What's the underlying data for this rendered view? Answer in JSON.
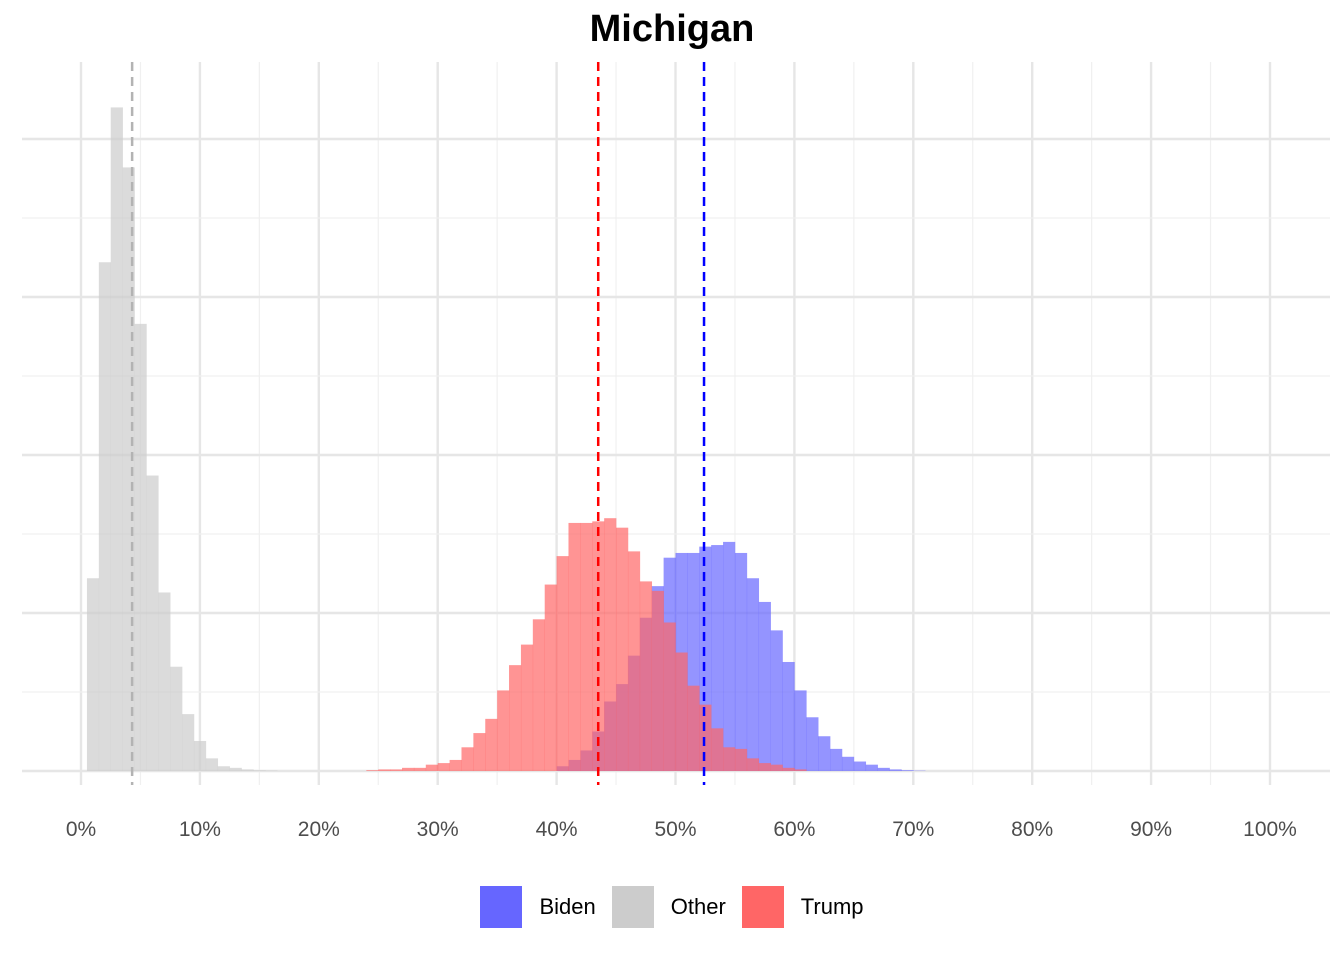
{
  "chart_data": {
    "type": "histogram",
    "title": "Michigan",
    "xlabel": "",
    "ylabel": "",
    "xlim": [
      -5,
      105
    ],
    "x_ticks": [
      0,
      10,
      20,
      30,
      40,
      50,
      60,
      70,
      80,
      90,
      100
    ],
    "x_tick_labels": [
      "0%",
      "10%",
      "20%",
      "30%",
      "40%",
      "50%",
      "60%",
      "70%",
      "80%",
      "90%",
      "100%"
    ],
    "y_axis_labels_shown": false,
    "y_gridlines": [
      0,
      1,
      2,
      3,
      4
    ],
    "ylim": [
      -0.1,
      4.45
    ],
    "grid": true,
    "bin_width": 1,
    "legend_position": "bottom",
    "series": [
      {
        "name": "Biden",
        "color": "#6666ff",
        "bin_starts": [
          40,
          41,
          42,
          43,
          44,
          45,
          46,
          47,
          48,
          49,
          50,
          51,
          52,
          53,
          54,
          55,
          56,
          57,
          58,
          59,
          60,
          61,
          62,
          63,
          64,
          65,
          66,
          67,
          68,
          69,
          70
        ],
        "values": [
          0.03,
          0.07,
          0.13,
          0.25,
          0.44,
          0.55,
          0.73,
          0.97,
          1.17,
          1.35,
          1.38,
          1.38,
          1.42,
          1.43,
          1.45,
          1.38,
          1.22,
          1.07,
          0.89,
          0.69,
          0.51,
          0.34,
          0.22,
          0.14,
          0.09,
          0.06,
          0.04,
          0.02,
          0.01,
          0.005,
          0.002
        ]
      },
      {
        "name": "Other",
        "color": "#cccccc",
        "bin_starts": [
          0.5,
          1.5,
          2.5,
          3.5,
          4.5,
          5.5,
          6.5,
          7.5,
          8.5,
          9.5,
          10.5,
          11.5,
          12.5,
          13.5,
          14.5,
          15.5
        ],
        "values": [
          1.22,
          3.22,
          4.2,
          3.82,
          2.83,
          1.87,
          1.13,
          0.66,
          0.36,
          0.19,
          0.08,
          0.03,
          0.02,
          0.01,
          0.005,
          0.003
        ]
      },
      {
        "name": "Trump",
        "color": "#ff6666",
        "bin_starts": [
          24,
          25,
          26,
          27,
          28,
          29,
          30,
          31,
          32,
          33,
          34,
          35,
          36,
          37,
          38,
          39,
          40,
          41,
          42,
          43,
          44,
          45,
          46,
          47,
          48,
          49,
          50,
          51,
          52,
          53,
          54,
          55,
          56,
          57,
          58,
          59,
          60
        ],
        "values": [
          0.005,
          0.01,
          0.01,
          0.02,
          0.02,
          0.04,
          0.05,
          0.07,
          0.15,
          0.24,
          0.33,
          0.51,
          0.67,
          0.8,
          0.96,
          1.18,
          1.36,
          1.57,
          1.57,
          1.58,
          1.6,
          1.54,
          1.39,
          1.2,
          1.14,
          0.94,
          0.75,
          0.54,
          0.42,
          0.27,
          0.15,
          0.14,
          0.08,
          0.05,
          0.04,
          0.02,
          0.01
        ]
      }
    ],
    "reference_lines": [
      {
        "series": "Other",
        "x": 4.3,
        "color": "#b3b3b3",
        "style": "dashed"
      },
      {
        "series": "Trump",
        "x": 43.5,
        "color": "#ff0000",
        "style": "dashed"
      },
      {
        "series": "Biden",
        "x": 52.4,
        "color": "#0000ff",
        "style": "dashed"
      }
    ],
    "overlap_color": "#c22860"
  }
}
